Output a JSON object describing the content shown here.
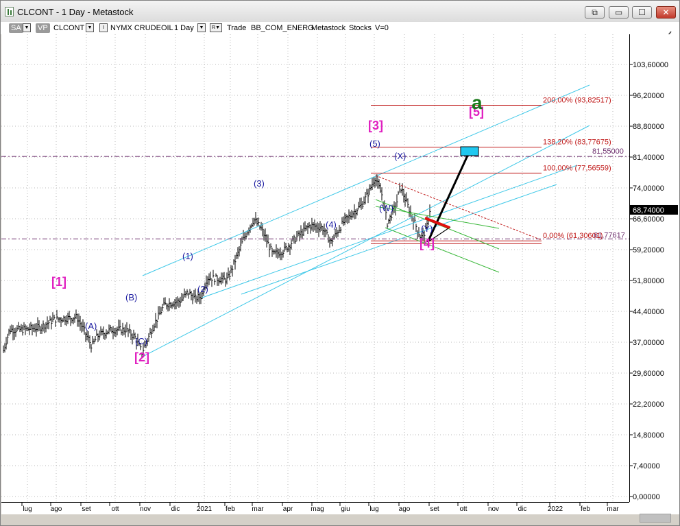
{
  "window": {
    "title": "CLCONT - 1 Day - Metastock",
    "buttons": {
      "restore_chart": "⧉",
      "minimize": "▭",
      "maximize": "☐",
      "close": "✕"
    }
  },
  "toolbar": {
    "sa": "SA",
    "vp": "VP",
    "symbol": "CLCONT",
    "exchange": "NYMX CRUDEOIL",
    "period": "1 Day",
    "mode_letter": "R",
    "mode": "Trade",
    "source": "BB_COM_ENERG",
    "provider": "Metastock",
    "category": "Stocks",
    "volume": "V=0"
  },
  "price_axis": {
    "ticks": [
      "103,60000",
      "96,20000",
      "88,80000",
      "81,40000",
      "74,00000",
      "66,60000",
      "59,20000",
      "51,80000",
      "44,40000",
      "37,00000",
      "29,60000",
      "22,20000",
      "14,80000",
      "7,40000",
      "0,00000"
    ],
    "current_price": "68,74000"
  },
  "date_axis": {
    "labels": [
      "lug",
      "ago",
      "set",
      "ott",
      "nov",
      "dic",
      "2021",
      "feb",
      "mar",
      "apr",
      "mag",
      "giu",
      "lug",
      "ago",
      "set",
      "ott",
      "nov",
      "dic",
      "2022",
      "feb",
      "mar"
    ]
  },
  "chart_data": {
    "type": "ohlc",
    "symbol": "CLCONT",
    "timeframe": "1 Day",
    "ylim": [
      0,
      103.6
    ],
    "monthly_closes": [
      {
        "month": "lug 2020",
        "close": 40.3
      },
      {
        "month": "ago 2020",
        "close": 42.6
      },
      {
        "month": "set 2020",
        "close": 40.2
      },
      {
        "month": "ott 2020",
        "close": 35.8
      },
      {
        "month": "nov 2020",
        "close": 45.3
      },
      {
        "month": "dic 2020",
        "close": 48.5
      },
      {
        "month": "gen 2021",
        "close": 52.2
      },
      {
        "month": "feb 2021",
        "close": 61.5
      },
      {
        "month": "mar 2021",
        "close": 59.2
      },
      {
        "month": "apr 2021",
        "close": 63.6
      },
      {
        "month": "mag 2021",
        "close": 66.3
      },
      {
        "month": "giu 2021",
        "close": 73.5
      },
      {
        "month": "lug 2021",
        "close": 73.9
      },
      {
        "month": "ago 2021",
        "close": 68.5
      }
    ],
    "horizontal_levels": [
      {
        "label": "81,55000",
        "value": 81.55
      },
      {
        "label": "61,77617",
        "value": 61.77617
      }
    ],
    "fibonacci": [
      {
        "label": "200,00% (93,82517)",
        "value": 93.82517
      },
      {
        "label": "138,20% (83,77675)",
        "value": 83.77675
      },
      {
        "label": "100,00% (77,56559)",
        "value": 77.56559
      },
      {
        "label": "0,00% (61,30601)",
        "value": 61.30601
      }
    ],
    "wave_labels": [
      {
        "label": "[1]",
        "color": "#e020c0"
      },
      {
        "label": "(A)",
        "color": "#1a1aa0"
      },
      {
        "label": "(B)",
        "color": "#1a1aa0"
      },
      {
        "label": "(C)",
        "color": "#1a1aa0"
      },
      {
        "label": "[2]",
        "color": "#e020c0"
      },
      {
        "label": "(1)",
        "color": "#1a1aa0"
      },
      {
        "label": "(2)",
        "color": "#1a1aa0"
      },
      {
        "label": "(3)",
        "color": "#1a1aa0"
      },
      {
        "label": "(4)",
        "color": "#1a1aa0"
      },
      {
        "label": "(5)",
        "color": "#1a1aa0"
      },
      {
        "label": "[3]",
        "color": "#e020c0"
      },
      {
        "label": "(W)",
        "color": "#1a1aa0"
      },
      {
        "label": "(X)",
        "color": "#1a1aa0"
      },
      {
        "label": "(Y)",
        "color": "#1a1aa0"
      },
      {
        "label": "[4]",
        "color": "#e020c0"
      },
      {
        "label": "[5]",
        "color": "#e020c0"
      },
      {
        "label": "a",
        "color": "#1a7a1a"
      }
    ]
  }
}
